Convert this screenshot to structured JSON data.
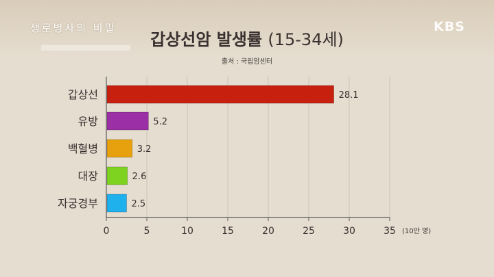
{
  "program_logo": "생로병사의 비밀",
  "broadcaster_logo": "KBS",
  "colors": {
    "background": "#e5ddd0",
    "gridline": "#cbc3b6",
    "axis": "#5a5a5a",
    "text": "#3a3130"
  },
  "chart_data": {
    "type": "bar",
    "orientation": "horizontal",
    "title": "갑상선암 발생률",
    "title_suffix": "(15-34세)",
    "source": "출처 : 국립암센터",
    "categories": [
      "갑상선",
      "유방",
      "백혈병",
      "대장",
      "자궁경부"
    ],
    "values": [
      28.1,
      5.2,
      3.2,
      2.6,
      2.5
    ],
    "value_labels": [
      "28.1",
      "5.2",
      "3.2",
      "2.6",
      "2.5"
    ],
    "bar_colors": [
      "#c8200e",
      "#9b2fa5",
      "#e8a10e",
      "#7ed321",
      "#1fb0ee"
    ],
    "x_ticks": [
      0,
      5,
      10,
      15,
      20,
      25,
      30,
      35
    ],
    "x_unit": "(10만 명)",
    "xlim": [
      0,
      35
    ],
    "grid": true
  }
}
